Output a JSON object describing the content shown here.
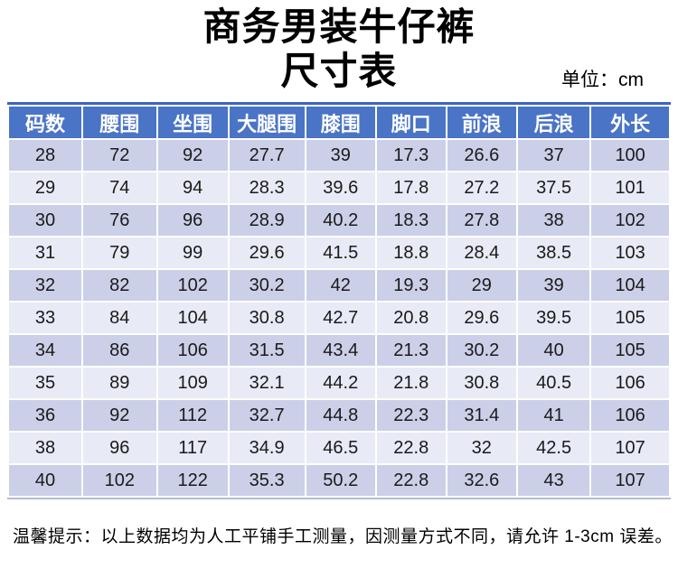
{
  "header": {
    "title_line1": "商务男装牛仔裤",
    "title_line2": "尺寸表",
    "unit_label": "单位：cm"
  },
  "chart_data": {
    "type": "table",
    "title": "商务男装牛仔裤尺寸表",
    "unit": "cm",
    "columns": [
      "码数",
      "腰围",
      "坐围",
      "大腿围",
      "膝围",
      "脚口",
      "前浪",
      "后浪",
      "外长"
    ],
    "rows": [
      [
        28,
        72,
        92,
        27.7,
        39,
        17.3,
        26.6,
        37,
        100
      ],
      [
        29,
        74,
        94,
        28.3,
        39.6,
        17.8,
        27.2,
        37.5,
        101
      ],
      [
        30,
        76,
        96,
        28.9,
        40.2,
        18.3,
        27.8,
        38,
        102
      ],
      [
        31,
        79,
        99,
        29.6,
        41.5,
        18.8,
        28.4,
        38.5,
        103
      ],
      [
        32,
        82,
        102,
        30.2,
        42,
        19.3,
        29,
        39,
        104
      ],
      [
        33,
        84,
        104,
        30.8,
        42.7,
        20.8,
        29.6,
        39.5,
        105
      ],
      [
        34,
        86,
        106,
        31.5,
        43.4,
        21.3,
        30.2,
        40,
        105
      ],
      [
        35,
        89,
        109,
        32.1,
        44.2,
        21.8,
        30.8,
        40.5,
        106
      ],
      [
        36,
        92,
        112,
        32.7,
        44.8,
        22.3,
        31.4,
        41,
        106
      ],
      [
        38,
        96,
        117,
        34.9,
        46.5,
        22.8,
        32,
        42.5,
        107
      ],
      [
        40,
        102,
        122,
        35.3,
        50.2,
        22.8,
        32.6,
        43,
        107
      ]
    ]
  },
  "footer": {
    "note": "温馨提示：以上数据均为人工平铺手工测量，因测量方式不同，请允许 1-3cm 误差。"
  },
  "colors": {
    "header_bg": "#4A74C6",
    "table_top_border": "#3B66BE",
    "row_dark": "#CBD0E8",
    "row_light": "#E8EAF5",
    "header_text": "#FFFFFF",
    "body_text": "#1A1A1A"
  }
}
